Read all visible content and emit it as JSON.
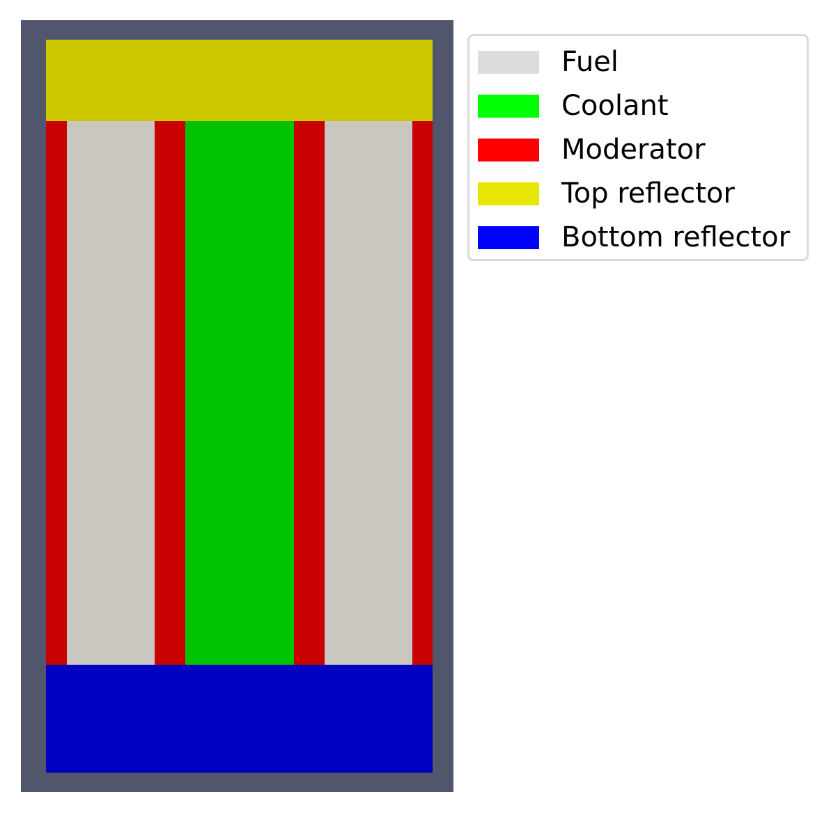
{
  "legend": {
    "items": [
      {
        "label": "Fuel",
        "color": "#dcdcdc"
      },
      {
        "label": "Coolant",
        "color": "#00ff00"
      },
      {
        "label": "Moderator",
        "color": "#ff0000"
      },
      {
        "label": "Top reflector",
        "color": "#e6e600"
      },
      {
        "label": "Bottom reflector",
        "color": "#0000ff"
      }
    ]
  },
  "colors": {
    "outer_frame": "#52566c",
    "fuel_region": "#c9c7c0",
    "coolant_region": "#00c300",
    "moderator_region": "#c80000",
    "top_reflector_region": "#cbc800",
    "bottom_reflector_region": "#0000c0"
  }
}
